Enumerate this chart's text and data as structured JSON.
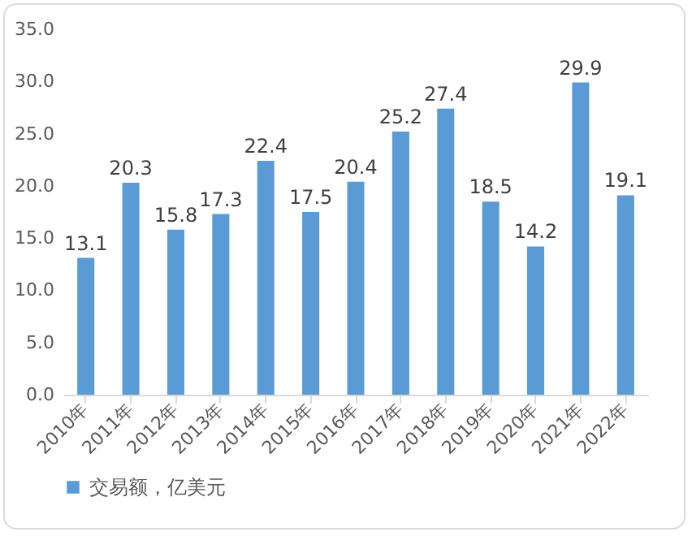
{
  "chart_data": {
    "type": "bar",
    "categories": [
      "2010年",
      "2011年",
      "2012年",
      "2013年",
      "2014年",
      "2015年",
      "2016年",
      "2017年",
      "2018年",
      "2019年",
      "2020年",
      "2021年",
      "2022年"
    ],
    "series": [
      {
        "name": "交易额，亿美元",
        "color": "#5b9bd5",
        "values": [
          13.1,
          20.3,
          15.8,
          17.3,
          22.4,
          17.5,
          20.4,
          25.2,
          27.4,
          18.5,
          14.2,
          29.9,
          19.1
        ]
      }
    ],
    "ylim": [
      0,
      35
    ],
    "yticks": [
      {
        "value": 0,
        "label": "0.0"
      },
      {
        "value": 5,
        "label": "5.0"
      },
      {
        "value": 10,
        "label": "10.0"
      },
      {
        "value": 15,
        "label": "15.0"
      },
      {
        "value": 20,
        "label": "20.0"
      },
      {
        "value": 25,
        "label": "25.0"
      },
      {
        "value": 30,
        "label": "30.0"
      },
      {
        "value": 35,
        "label": "35.0"
      }
    ],
    "data_labels": true,
    "legend": "bottom"
  }
}
